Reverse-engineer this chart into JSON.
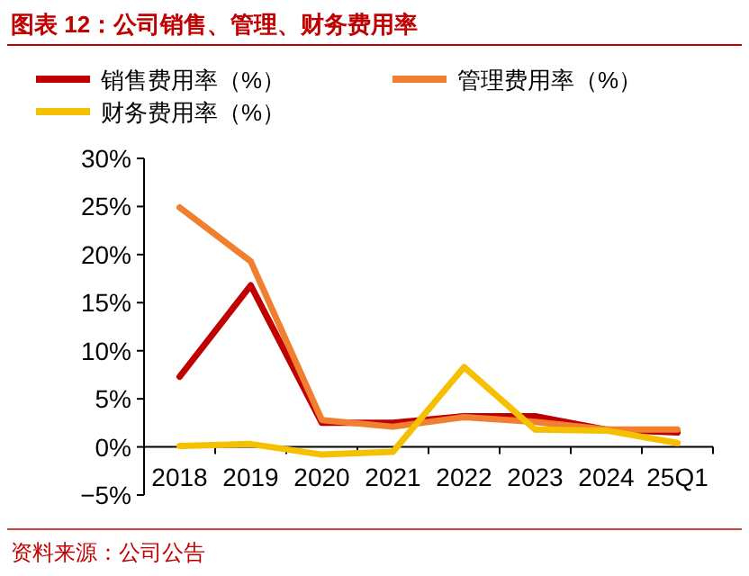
{
  "chart_data": {
    "type": "line",
    "title": "图表 12：公司销售、管理、财务费用率",
    "categories": [
      "2018",
      "2019",
      "2020",
      "2021",
      "2022",
      "2023",
      "2024",
      "25Q1"
    ],
    "series": [
      {
        "name": "销售费用率（%）",
        "color": "#c00000",
        "values": [
          7.3,
          16.8,
          2.5,
          2.5,
          3.2,
          3.2,
          1.8,
          1.5
        ]
      },
      {
        "name": "管理费用率（%）",
        "color": "#f08030",
        "values": [
          24.9,
          19.3,
          2.8,
          2.1,
          3.1,
          2.6,
          1.8,
          1.8
        ]
      },
      {
        "name": "财务费用率（%）",
        "color": "#f5c000",
        "values": [
          0.1,
          0.3,
          -0.8,
          -0.5,
          8.3,
          1.8,
          1.7,
          0.4
        ]
      }
    ],
    "ylim": [
      -5,
      30
    ],
    "yticks": [
      {
        "value": -5,
        "label": "−5%"
      },
      {
        "value": 0,
        "label": "0%"
      },
      {
        "value": 5,
        "label": "5%"
      },
      {
        "value": 10,
        "label": "10%"
      },
      {
        "value": 15,
        "label": "15%"
      },
      {
        "value": 20,
        "label": "20%"
      },
      {
        "value": 25,
        "label": "25%"
      },
      {
        "value": 30,
        "label": "30%"
      }
    ],
    "grid": false,
    "legend": "top",
    "marker": "none",
    "line_style": "solid",
    "annotations": [
      "资料来源：公司公告"
    ]
  }
}
